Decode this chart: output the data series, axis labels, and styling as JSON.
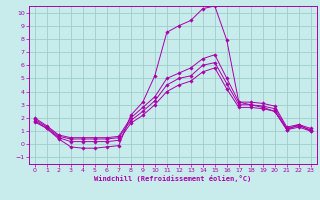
{
  "xlabel": "Windchill (Refroidissement éolien,°C)",
  "xlim": [
    -0.5,
    23.5
  ],
  "ylim": [
    -1.5,
    10.5
  ],
  "xticks": [
    0,
    1,
    2,
    3,
    4,
    5,
    6,
    7,
    8,
    9,
    10,
    11,
    12,
    13,
    14,
    15,
    16,
    17,
    18,
    19,
    20,
    21,
    22,
    23
  ],
  "yticks": [
    -1,
    0,
    1,
    2,
    3,
    4,
    5,
    6,
    7,
    8,
    9,
    10
  ],
  "bg_color": "#c8ecec",
  "grid_color": "#9ecece",
  "line_color": "#aa00aa",
  "series1": [
    1.7,
    1.2,
    0.4,
    -0.2,
    -0.3,
    -0.3,
    -0.2,
    -0.1,
    2.2,
    3.2,
    5.2,
    8.5,
    9.0,
    9.4,
    10.3,
    10.5,
    7.9,
    3.2,
    3.0,
    2.8,
    2.5,
    1.1,
    1.5,
    1.0
  ],
  "series2": [
    1.8,
    1.2,
    0.5,
    0.2,
    0.2,
    0.2,
    0.2,
    0.3,
    1.6,
    2.2,
    3.0,
    4.0,
    4.5,
    4.8,
    5.5,
    5.8,
    4.2,
    2.8,
    2.8,
    2.7,
    2.5,
    1.1,
    1.3,
    1.0
  ],
  "series3": [
    1.9,
    1.3,
    0.6,
    0.4,
    0.4,
    0.4,
    0.4,
    0.5,
    1.8,
    2.5,
    3.3,
    4.5,
    5.0,
    5.2,
    6.0,
    6.2,
    4.6,
    3.0,
    3.0,
    2.9,
    2.7,
    1.2,
    1.4,
    1.1
  ],
  "series4": [
    2.0,
    1.4,
    0.7,
    0.5,
    0.5,
    0.5,
    0.5,
    0.6,
    2.0,
    2.8,
    3.6,
    5.0,
    5.4,
    5.8,
    6.5,
    6.8,
    5.0,
    3.2,
    3.2,
    3.1,
    2.9,
    1.3,
    1.5,
    1.2
  ]
}
